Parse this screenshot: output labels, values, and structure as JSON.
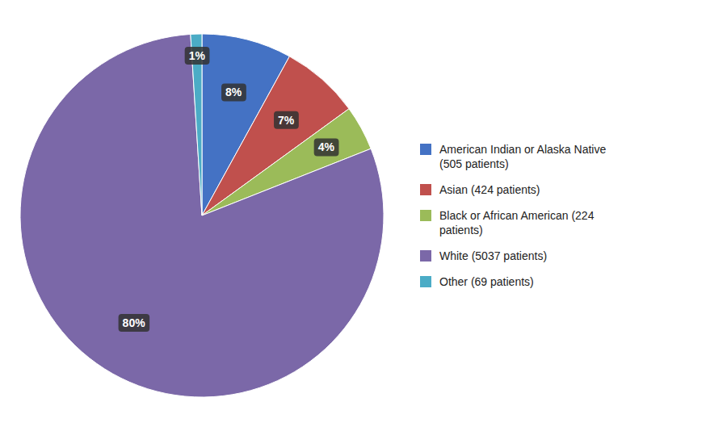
{
  "chart_data": {
    "type": "pie",
    "categories": [
      "American Indian or Alaska Native\n(505 patients)",
      "Asian (424 patients)",
      "Black or African American (224\npatients)",
      "White (5037 patients)",
      "Other (69 patients)"
    ],
    "values": [
      8,
      7,
      4,
      80,
      1
    ],
    "value_labels": [
      "8%",
      "7%",
      "4%",
      "80%",
      "1%"
    ],
    "colors": [
      "#4472c4",
      "#c0504d",
      "#9bbb59",
      "#7b68a8",
      "#4bacc6"
    ],
    "data_labels": true,
    "legend": "right"
  }
}
